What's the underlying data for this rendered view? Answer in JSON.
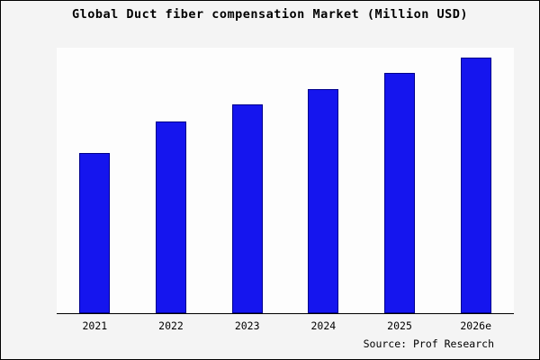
{
  "chart_data": {
    "type": "bar",
    "title": "Global Duct fiber compensation Market (Million USD)",
    "categories": [
      "2021",
      "2022",
      "2023",
      "2024",
      "2025",
      "2026e"
    ],
    "values": [
      62.7,
      75.0,
      81.7,
      87.7,
      94.0,
      100.0
    ],
    "xlabel": "",
    "ylabel": "",
    "ylim": [
      0,
      104
    ],
    "grid": false,
    "legend_position": "none",
    "bar_color": "#1515ee",
    "bar_edge_color": "#00008b"
  },
  "source": {
    "label": "Source: Prof Research"
  }
}
